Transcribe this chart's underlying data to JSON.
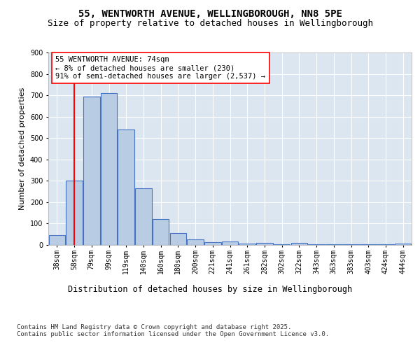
{
  "title1": "55, WENTWORTH AVENUE, WELLINGBOROUGH, NN8 5PE",
  "title2": "Size of property relative to detached houses in Wellingborough",
  "xlabel": "Distribution of detached houses by size in Wellingborough",
  "ylabel": "Number of detached properties",
  "categories": [
    "38sqm",
    "58sqm",
    "79sqm",
    "99sqm",
    "119sqm",
    "140sqm",
    "160sqm",
    "180sqm",
    "200sqm",
    "221sqm",
    "241sqm",
    "261sqm",
    "282sqm",
    "302sqm",
    "322sqm",
    "343sqm",
    "363sqm",
    "383sqm",
    "403sqm",
    "424sqm",
    "444sqm"
  ],
  "values": [
    45,
    300,
    695,
    710,
    540,
    265,
    122,
    57,
    25,
    13,
    17,
    7,
    10,
    3,
    10,
    3,
    3,
    3,
    3,
    3,
    8
  ],
  "bar_color": "#b8cce4",
  "bar_edge_color": "#4472c4",
  "bar_edge_width": 0.8,
  "vline_x": 1.0,
  "vline_color": "red",
  "vline_linewidth": 1.5,
  "annotation_text": "55 WENTWORTH AVENUE: 74sqm\n← 8% of detached houses are smaller (230)\n91% of semi-detached houses are larger (2,537) →",
  "annotation_box_color": "white",
  "annotation_box_edgecolor": "red",
  "ylim": [
    0,
    900
  ],
  "yticks": [
    0,
    100,
    200,
    300,
    400,
    500,
    600,
    700,
    800,
    900
  ],
  "bg_color": "#dce6f1",
  "fig_bg_color": "#ffffff",
  "footnote": "Contains HM Land Registry data © Crown copyright and database right 2025.\nContains public sector information licensed under the Open Government Licence v3.0.",
  "title1_fontsize": 10,
  "title2_fontsize": 9,
  "xlabel_fontsize": 8.5,
  "ylabel_fontsize": 8,
  "tick_fontsize": 7,
  "annotation_fontsize": 7.5,
  "footnote_fontsize": 6.5
}
